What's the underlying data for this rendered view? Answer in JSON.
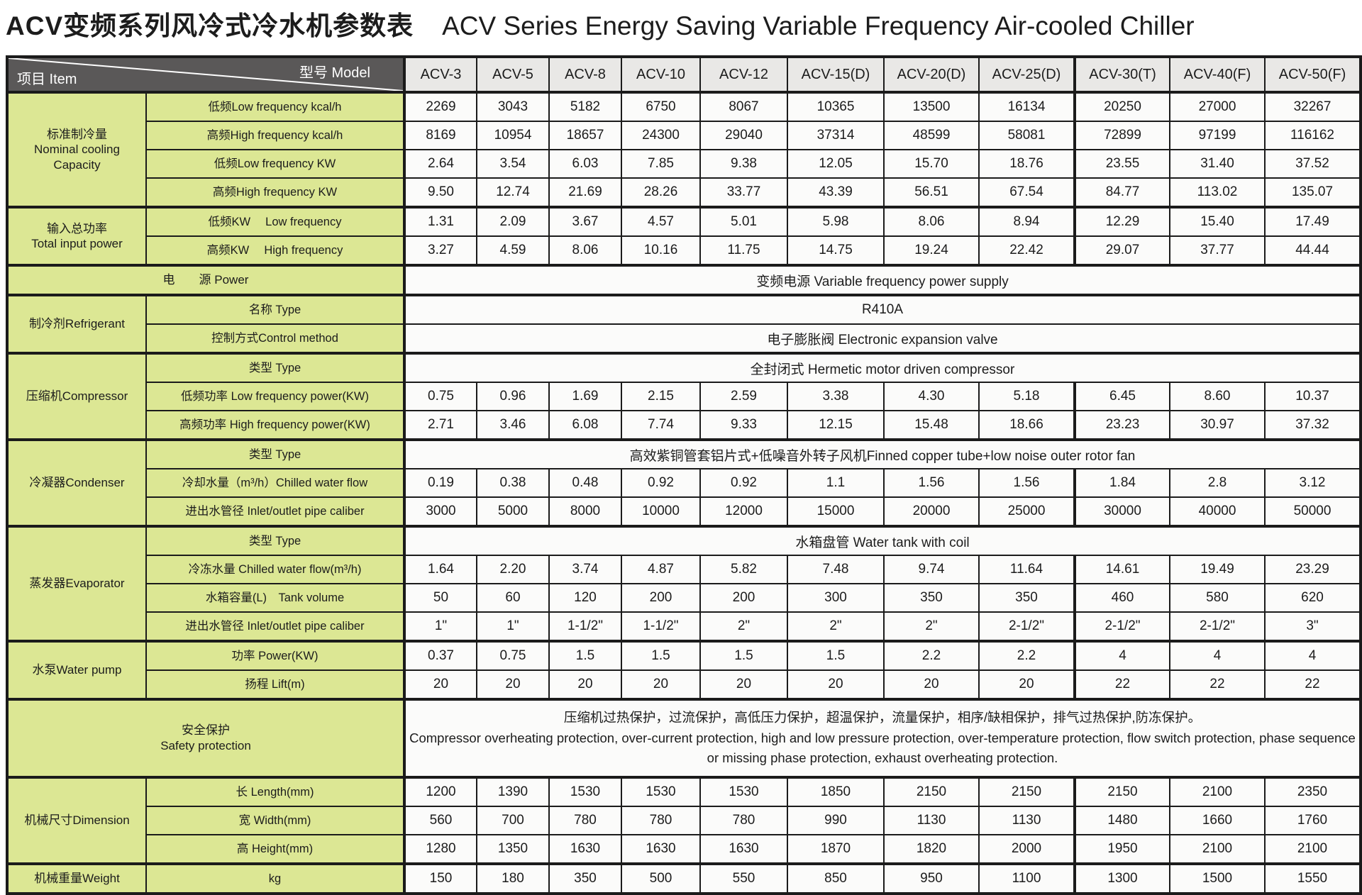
{
  "title": {
    "zh": "ACV变频系列风冷式冷水机参数表",
    "en": "ACV Series Energy Saving Variable Frequency Air-cooled Chiller"
  },
  "header": {
    "model_label": "型号  Model",
    "item_label": "项目  Item",
    "models": [
      "ACV-3",
      "ACV-5",
      "ACV-8",
      "ACV-10",
      "ACV-12",
      "ACV-15(D)",
      "ACV-20(D)",
      "ACV-25(D)",
      "ACV-30(T)",
      "ACV-40(F)",
      "ACV-50(F)"
    ]
  },
  "sections": {
    "capacity": {
      "category": "标准制冷量\nNominal cooling\nCapacity",
      "rows": [
        {
          "label": "低频Low frequency  kcal/h",
          "values": [
            "2269",
            "3043",
            "5182",
            "6750",
            "8067",
            "10365",
            "13500",
            "16134",
            "20250",
            "27000",
            "32267"
          ]
        },
        {
          "label": "高频High frequency  kcal/h",
          "values": [
            "8169",
            "10954",
            "18657",
            "24300",
            "29040",
            "37314",
            "48599",
            "58081",
            "72899",
            "97199",
            "116162"
          ]
        },
        {
          "label": "低频Low frequency  KW",
          "values": [
            "2.64",
            "3.54",
            "6.03",
            "7.85",
            "9.38",
            "12.05",
            "15.70",
            "18.76",
            "23.55",
            "31.40",
            "37.52"
          ]
        },
        {
          "label": "高频High frequency  KW",
          "values": [
            "9.50",
            "12.74",
            "21.69",
            "28.26",
            "33.77",
            "43.39",
            "56.51",
            "67.54",
            "84.77",
            "113.02",
            "135.07"
          ]
        }
      ]
    },
    "input_power": {
      "category": "输入总功率\nTotal input power",
      "rows": [
        {
          "label": "低频KW　 Low frequency",
          "values": [
            "1.31",
            "2.09",
            "3.67",
            "4.57",
            "5.01",
            "5.98",
            "8.06",
            "8.94",
            "12.29",
            "15.40",
            "17.49"
          ]
        },
        {
          "label": "高频KW　 High frequency",
          "values": [
            "3.27",
            "4.59",
            "8.06",
            "10.16",
            "11.75",
            "14.75",
            "19.24",
            "22.42",
            "29.07",
            "37.77",
            "44.44"
          ]
        }
      ]
    },
    "power": {
      "label": "电　　源  Power",
      "value": "变频电源 Variable frequency power supply"
    },
    "refrigerant": {
      "category": "制冷剂Refrigerant",
      "rows": [
        {
          "label": "名称  Type",
          "value": "R410A"
        },
        {
          "label": "控制方式Control method",
          "value": "电子膨胀阀 Electronic expansion valve"
        }
      ]
    },
    "compressor": {
      "category": "压缩机Compressor",
      "type_row": {
        "label": "类型 Type",
        "value": "全封闭式 Hermetic motor driven compressor"
      },
      "rows": [
        {
          "label": "低频功率  Low frequency power(KW)",
          "values": [
            "0.75",
            "0.96",
            "1.69",
            "2.15",
            "2.59",
            "3.38",
            "4.30",
            "5.18",
            "6.45",
            "8.60",
            "10.37"
          ]
        },
        {
          "label": "高频功率 High frequency power(KW)",
          "values": [
            "2.71",
            "3.46",
            "6.08",
            "7.74",
            "9.33",
            "12.15",
            "15.48",
            "18.66",
            "23.23",
            "30.97",
            "37.32"
          ]
        }
      ]
    },
    "condenser": {
      "category": "冷凝器Condenser",
      "type_row": {
        "label": "类型 Type",
        "value": "高效紫铜管套铝片式+低噪音外转子风机Finned copper tube+low noise outer rotor fan"
      },
      "rows": [
        {
          "label": "冷却水量（m³/h）Chilled water flow",
          "values": [
            "0.19",
            "0.38",
            "0.48",
            "0.92",
            "0.92",
            "1.1",
            "1.56",
            "1.56",
            "1.84",
            "2.8",
            "3.12"
          ]
        },
        {
          "label": "进出水管径 Inlet/outlet pipe caliber",
          "values": [
            "3000",
            "5000",
            "8000",
            "10000",
            "12000",
            "15000",
            "20000",
            "25000",
            "30000",
            "40000",
            "50000"
          ]
        }
      ]
    },
    "evaporator": {
      "category": "蒸发器Evaporator",
      "type_row": {
        "label": "类型 Type",
        "value": "水箱盘管 Water tank with coil"
      },
      "rows": [
        {
          "label": "冷冻水量 Chilled water flow(m³/h)",
          "values": [
            "1.64",
            "2.20",
            "3.74",
            "4.87",
            "5.82",
            "7.48",
            "9.74",
            "11.64",
            "14.61",
            "19.49",
            "23.29"
          ]
        },
        {
          "label": "水箱容量(L)　Tank volume",
          "values": [
            "50",
            "60",
            "120",
            "200",
            "200",
            "300",
            "350",
            "350",
            "460",
            "580",
            "620"
          ]
        },
        {
          "label": "进出水管径  Inlet/outlet pipe caliber",
          "values": [
            "1\"",
            "1\"",
            "1-1/2\"",
            "1-1/2\"",
            "2\"",
            "2\"",
            "2\"",
            "2-1/2\"",
            "2-1/2\"",
            "2-1/2\"",
            "3\""
          ]
        }
      ]
    },
    "pump": {
      "category": "水泵Water pump",
      "rows": [
        {
          "label": "功率  Power(KW)",
          "values": [
            "0.37",
            "0.75",
            "1.5",
            "1.5",
            "1.5",
            "1.5",
            "2.2",
            "2.2",
            "4",
            "4",
            "4"
          ]
        },
        {
          "label": "扬程  Lift(m)",
          "values": [
            "20",
            "20",
            "20",
            "20",
            "20",
            "20",
            "20",
            "20",
            "22",
            "22",
            "22"
          ]
        }
      ]
    },
    "safety": {
      "label": "安全保护\nSafety protection",
      "zh": "压缩机过热保护，过流保护，高低压力保护，超温保护，流量保护，相序/缺相保护，排气过热保护,防冻保护。",
      "en": "Compressor overheating protection, over-current protection, high and low pressure protection, over-temperature protection, flow switch protection, phase sequence or missing phase protection, exhaust overheating protection."
    },
    "dimension": {
      "category": "机械尺寸Dimension",
      "rows": [
        {
          "label": "长  Length(mm)",
          "values": [
            "1200",
            "1390",
            "1530",
            "1530",
            "1530",
            "1850",
            "2150",
            "2150",
            "2150",
            "2100",
            "2350"
          ]
        },
        {
          "label": "宽  Width(mm)",
          "values": [
            "560",
            "700",
            "780",
            "780",
            "780",
            "990",
            "1130",
            "1130",
            "1480",
            "1660",
            "1760"
          ]
        },
        {
          "label": "高  Height(mm)",
          "values": [
            "1280",
            "1350",
            "1630",
            "1630",
            "1630",
            "1870",
            "1820",
            "2000",
            "1950",
            "2100",
            "2100"
          ]
        }
      ]
    },
    "weight": {
      "category": "机械重量Weight",
      "rows": [
        {
          "label": "kg",
          "values": [
            "150",
            "180",
            "350",
            "500",
            "550",
            "850",
            "950",
            "1100",
            "1300",
            "1500",
            "1550"
          ]
        }
      ]
    }
  }
}
